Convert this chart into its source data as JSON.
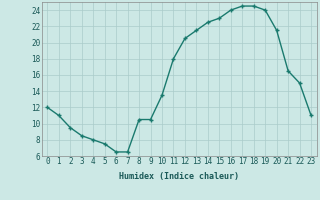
{
  "x": [
    0,
    1,
    2,
    3,
    4,
    5,
    6,
    7,
    8,
    9,
    10,
    11,
    12,
    13,
    14,
    15,
    16,
    17,
    18,
    19,
    20,
    21,
    22,
    23
  ],
  "y": [
    12,
    11,
    9.5,
    8.5,
    8,
    7.5,
    6.5,
    6.5,
    10.5,
    10.5,
    13.5,
    18,
    20.5,
    21.5,
    22.5,
    23,
    24,
    24.5,
    24.5,
    24,
    21.5,
    16.5,
    15,
    11
  ],
  "line_color": "#1a7a6e",
  "marker": "+",
  "marker_size": 3.5,
  "marker_lw": 1.0,
  "bg_color": "#cce8e5",
  "grid_color": "#aaccca",
  "xlabel": "Humidex (Indice chaleur)",
  "ylim": [
    6,
    25
  ],
  "xlim": [
    -0.5,
    23.5
  ],
  "yticks": [
    6,
    8,
    10,
    12,
    14,
    16,
    18,
    20,
    22,
    24
  ],
  "xticks": [
    0,
    1,
    2,
    3,
    4,
    5,
    6,
    7,
    8,
    9,
    10,
    11,
    12,
    13,
    14,
    15,
    16,
    17,
    18,
    19,
    20,
    21,
    22,
    23
  ],
  "label_fontsize": 6,
  "tick_fontsize": 5.5,
  "line_width": 1.0
}
